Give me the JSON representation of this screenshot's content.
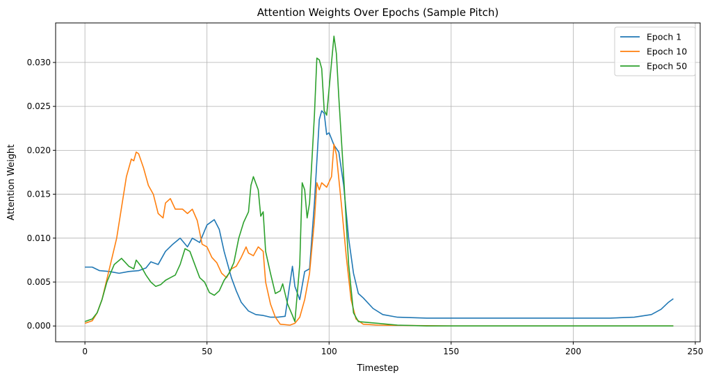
{
  "chart_data": {
    "type": "line",
    "title": "Attention Weights Over Epochs (Sample Pitch)",
    "xlabel": "Timestep",
    "ylabel": "Attention Weight",
    "xlim": [
      -12,
      252
    ],
    "ylim": [
      -0.0018,
      0.0345
    ],
    "xticks": [
      0,
      50,
      100,
      150,
      200,
      250
    ],
    "xtick_labels": [
      "0",
      "50",
      "100",
      "150",
      "200",
      "250"
    ],
    "yticks": [
      0,
      0.005,
      0.01,
      0.015,
      0.02,
      0.025,
      0.03
    ],
    "ytick_labels": [
      "0.000",
      "0.005",
      "0.010",
      "0.015",
      "0.020",
      "0.025",
      "0.030"
    ],
    "grid": true,
    "legend_position": "top-right",
    "series": [
      {
        "name": "Epoch 1",
        "color": "#1f77b4",
        "points": [
          [
            0,
            0.0067
          ],
          [
            3,
            0.0067
          ],
          [
            6,
            0.0063
          ],
          [
            10,
            0.0062
          ],
          [
            14,
            0.006
          ],
          [
            18,
            0.0062
          ],
          [
            22,
            0.0063
          ],
          [
            25,
            0.0066
          ],
          [
            27,
            0.0073
          ],
          [
            30,
            0.007
          ],
          [
            33,
            0.0085
          ],
          [
            36,
            0.0093
          ],
          [
            39,
            0.01
          ],
          [
            42,
            0.009
          ],
          [
            44,
            0.01
          ],
          [
            47,
            0.0095
          ],
          [
            50,
            0.0115
          ],
          [
            53,
            0.0121
          ],
          [
            55,
            0.011
          ],
          [
            57,
            0.0085
          ],
          [
            60,
            0.0055
          ],
          [
            62,
            0.004
          ],
          [
            64,
            0.0027
          ],
          [
            67,
            0.0017
          ],
          [
            70,
            0.0013
          ],
          [
            73,
            0.0012
          ],
          [
            76,
            0.001
          ],
          [
            79,
            0.001
          ],
          [
            82,
            0.0011
          ],
          [
            85,
            0.0068
          ],
          [
            86,
            0.0045
          ],
          [
            88,
            0.003
          ],
          [
            90,
            0.0062
          ],
          [
            92,
            0.0065
          ],
          [
            94,
            0.014
          ],
          [
            96,
            0.0235
          ],
          [
            97,
            0.0245
          ],
          [
            98,
            0.0242
          ],
          [
            99,
            0.0218
          ],
          [
            100,
            0.022
          ],
          [
            101,
            0.0213
          ],
          [
            102,
            0.0206
          ],
          [
            104,
            0.0198
          ],
          [
            106,
            0.016
          ],
          [
            108,
            0.01
          ],
          [
            110,
            0.006
          ],
          [
            112,
            0.0037
          ],
          [
            114,
            0.0032
          ],
          [
            118,
            0.002
          ],
          [
            122,
            0.0013
          ],
          [
            128,
            0.001
          ],
          [
            140,
            0.0009
          ],
          [
            160,
            0.0009
          ],
          [
            180,
            0.0009
          ],
          [
            200,
            0.0009
          ],
          [
            215,
            0.0009
          ],
          [
            225,
            0.001
          ],
          [
            232,
            0.0013
          ],
          [
            236,
            0.0019
          ],
          [
            239,
            0.0027
          ],
          [
            241,
            0.0031
          ]
        ]
      },
      {
        "name": "Epoch 10",
        "color": "#ff7f0e",
        "points": [
          [
            0,
            0.0003
          ],
          [
            3,
            0.0006
          ],
          [
            5,
            0.0015
          ],
          [
            7,
            0.003
          ],
          [
            10,
            0.0065
          ],
          [
            13,
            0.01
          ],
          [
            15,
            0.0135
          ],
          [
            17,
            0.017
          ],
          [
            19,
            0.019
          ],
          [
            20,
            0.0188
          ],
          [
            21,
            0.0198
          ],
          [
            22,
            0.0196
          ],
          [
            24,
            0.018
          ],
          [
            26,
            0.016
          ],
          [
            28,
            0.015
          ],
          [
            30,
            0.0128
          ],
          [
            32,
            0.0123
          ],
          [
            33,
            0.014
          ],
          [
            35,
            0.0145
          ],
          [
            37,
            0.0133
          ],
          [
            40,
            0.0133
          ],
          [
            42,
            0.0128
          ],
          [
            44,
            0.0133
          ],
          [
            46,
            0.012
          ],
          [
            48,
            0.0093
          ],
          [
            50,
            0.009
          ],
          [
            52,
            0.0078
          ],
          [
            54,
            0.0072
          ],
          [
            56,
            0.006
          ],
          [
            58,
            0.0055
          ],
          [
            60,
            0.0065
          ],
          [
            62,
            0.0068
          ],
          [
            64,
            0.0078
          ],
          [
            66,
            0.009
          ],
          [
            67,
            0.0083
          ],
          [
            69,
            0.008
          ],
          [
            71,
            0.009
          ],
          [
            73,
            0.0085
          ],
          [
            74,
            0.005
          ],
          [
            76,
            0.0025
          ],
          [
            78,
            0.001
          ],
          [
            80,
            0.0002
          ],
          [
            84,
            0.0001
          ],
          [
            86,
            0.0003
          ],
          [
            88,
            0.001
          ],
          [
            90,
            0.003
          ],
          [
            92,
            0.006
          ],
          [
            94,
            0.012
          ],
          [
            95,
            0.0163
          ],
          [
            96,
            0.0155
          ],
          [
            97,
            0.0163
          ],
          [
            99,
            0.0158
          ],
          [
            101,
            0.017
          ],
          [
            102,
            0.0207
          ],
          [
            103,
            0.0195
          ],
          [
            105,
            0.014
          ],
          [
            107,
            0.008
          ],
          [
            109,
            0.003
          ],
          [
            111,
            0.0008
          ],
          [
            114,
            0.0002
          ],
          [
            120,
            0.0001
          ],
          [
            150,
            0.0
          ],
          [
            200,
            0.0
          ],
          [
            241,
            0.0
          ]
        ]
      },
      {
        "name": "Epoch 50",
        "color": "#2ca02c",
        "points": [
          [
            0,
            0.0005
          ],
          [
            3,
            0.0008
          ],
          [
            5,
            0.0015
          ],
          [
            7,
            0.003
          ],
          [
            9,
            0.005
          ],
          [
            12,
            0.007
          ],
          [
            15,
            0.0077
          ],
          [
            18,
            0.0068
          ],
          [
            20,
            0.0065
          ],
          [
            21,
            0.0075
          ],
          [
            23,
            0.0068
          ],
          [
            25,
            0.0058
          ],
          [
            27,
            0.005
          ],
          [
            29,
            0.0045
          ],
          [
            31,
            0.0047
          ],
          [
            33,
            0.0052
          ],
          [
            35,
            0.0055
          ],
          [
            37,
            0.0058
          ],
          [
            39,
            0.007
          ],
          [
            41,
            0.0088
          ],
          [
            43,
            0.0085
          ],
          [
            45,
            0.007
          ],
          [
            47,
            0.0055
          ],
          [
            49,
            0.005
          ],
          [
            51,
            0.0038
          ],
          [
            53,
            0.0035
          ],
          [
            55,
            0.004
          ],
          [
            57,
            0.0052
          ],
          [
            59,
            0.006
          ],
          [
            61,
            0.0072
          ],
          [
            63,
            0.01
          ],
          [
            65,
            0.0118
          ],
          [
            67,
            0.013
          ],
          [
            68,
            0.016
          ],
          [
            69,
            0.017
          ],
          [
            71,
            0.0155
          ],
          [
            72,
            0.0125
          ],
          [
            73,
            0.013
          ],
          [
            74,
            0.0085
          ],
          [
            76,
            0.006
          ],
          [
            78,
            0.0037
          ],
          [
            80,
            0.004
          ],
          [
            81,
            0.0048
          ],
          [
            83,
            0.0025
          ],
          [
            85,
            0.0012
          ],
          [
            86,
            0.0005
          ],
          [
            88,
            0.007
          ],
          [
            89,
            0.0163
          ],
          [
            90,
            0.0155
          ],
          [
            91,
            0.0123
          ],
          [
            92,
            0.014
          ],
          [
            94,
            0.024
          ],
          [
            95,
            0.0305
          ],
          [
            96,
            0.0303
          ],
          [
            97,
            0.0293
          ],
          [
            98,
            0.0245
          ],
          [
            99,
            0.024
          ],
          [
            100,
            0.027
          ],
          [
            101,
            0.03
          ],
          [
            102,
            0.033
          ],
          [
            103,
            0.031
          ],
          [
            104,
            0.026
          ],
          [
            106,
            0.017
          ],
          [
            108,
            0.007
          ],
          [
            110,
            0.0015
          ],
          [
            112,
            0.0005
          ],
          [
            120,
            0.0003
          ],
          [
            128,
            0.0001
          ],
          [
            140,
            0.0
          ],
          [
            200,
            0.0
          ],
          [
            241,
            0.0
          ]
        ]
      }
    ]
  }
}
